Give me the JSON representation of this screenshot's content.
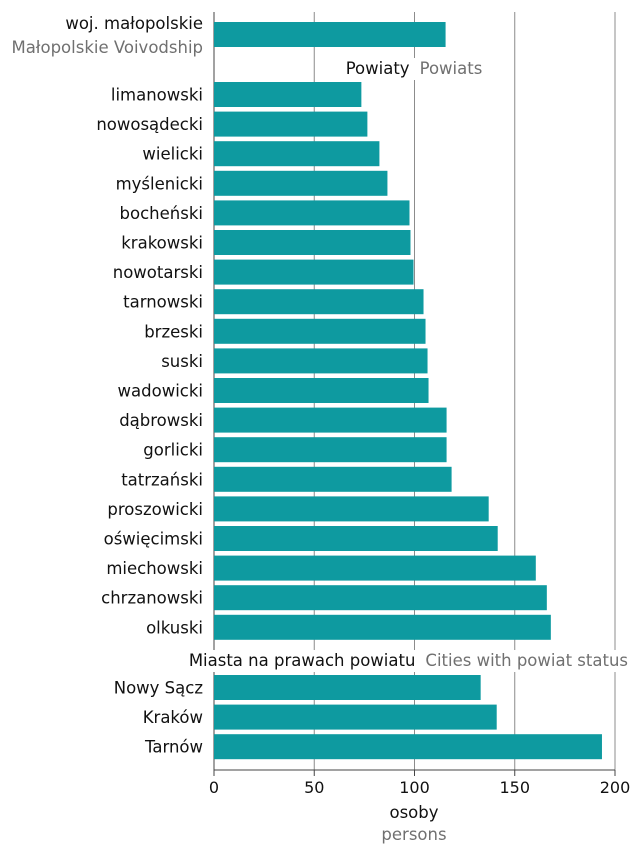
{
  "chart_data": {
    "type": "bar",
    "orientation": "horizontal",
    "bar_color": "#0e9aa0",
    "xlim": [
      0,
      200
    ],
    "xticks": [
      "0",
      "50",
      "100",
      "150",
      "200"
    ],
    "grid": true,
    "xlabel": "osoby",
    "xlabel_en": "persons",
    "region": {
      "label": "woj. małopolskie",
      "label_en": "Małopolskie Voivodship",
      "value": 115.5
    },
    "groups": [
      {
        "title": "Powiaty",
        "title_en": "Powiats",
        "categories": [
          "limanowski",
          "nowosądecki",
          "wielicki",
          "myślenicki",
          "bocheński",
          "krakowski",
          "nowotarski",
          "tarnowski",
          "brzeski",
          "suski",
          "wadowicki",
          "dąbrowski",
          "gorlicki",
          "tatrzański",
          "proszowicki",
          "oświęcimski",
          "miechowski",
          "chrzanowski",
          "olkuski"
        ],
        "values": [
          73.5,
          76.5,
          82.5,
          86.5,
          97.5,
          98,
          99.5,
          104.5,
          105.5,
          106.5,
          107,
          116,
          116,
          118.5,
          137,
          141.5,
          160.5,
          166,
          168
        ]
      },
      {
        "title": "Miasta na prawach powiatu",
        "title_en": "Cities with powiat status",
        "categories": [
          "Nowy Sącz",
          "Kraków",
          "Tarnów"
        ],
        "values": [
          133,
          141,
          193.5
        ]
      }
    ]
  }
}
